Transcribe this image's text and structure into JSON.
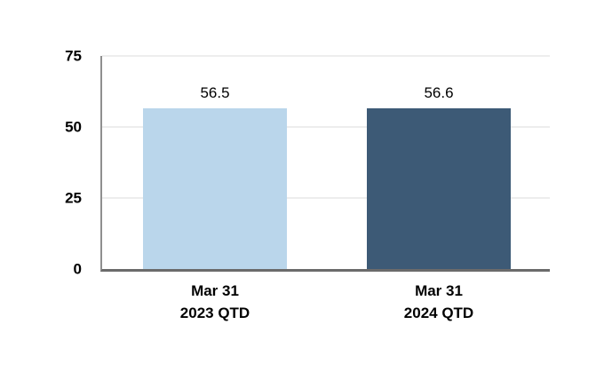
{
  "chart_data": {
    "type": "bar",
    "title": "",
    "xlabel": "",
    "ylabel": "",
    "categories": [
      "Mar 31 2023 QTD",
      "Mar 31 2024 QTD"
    ],
    "category_lines": [
      [
        "Mar 31",
        "2023 QTD"
      ],
      [
        "Mar 31",
        "2024 QTD"
      ]
    ],
    "values": [
      56.5,
      56.6
    ],
    "value_labels": [
      "56.5",
      "56.6"
    ],
    "bar_colors": [
      "#bad6eb",
      "#3d5a76"
    ],
    "ylim": [
      0,
      75
    ],
    "yticks": [
      75,
      50,
      25,
      0
    ],
    "gridlines": [
      25,
      50,
      75
    ],
    "grid": true,
    "legend": false,
    "background_color": "#ffffff",
    "axis_color": "#8f8f8f",
    "baseline_color": "#6b6b6b",
    "gridline_color": "#ededed",
    "text_color": "#000000"
  }
}
